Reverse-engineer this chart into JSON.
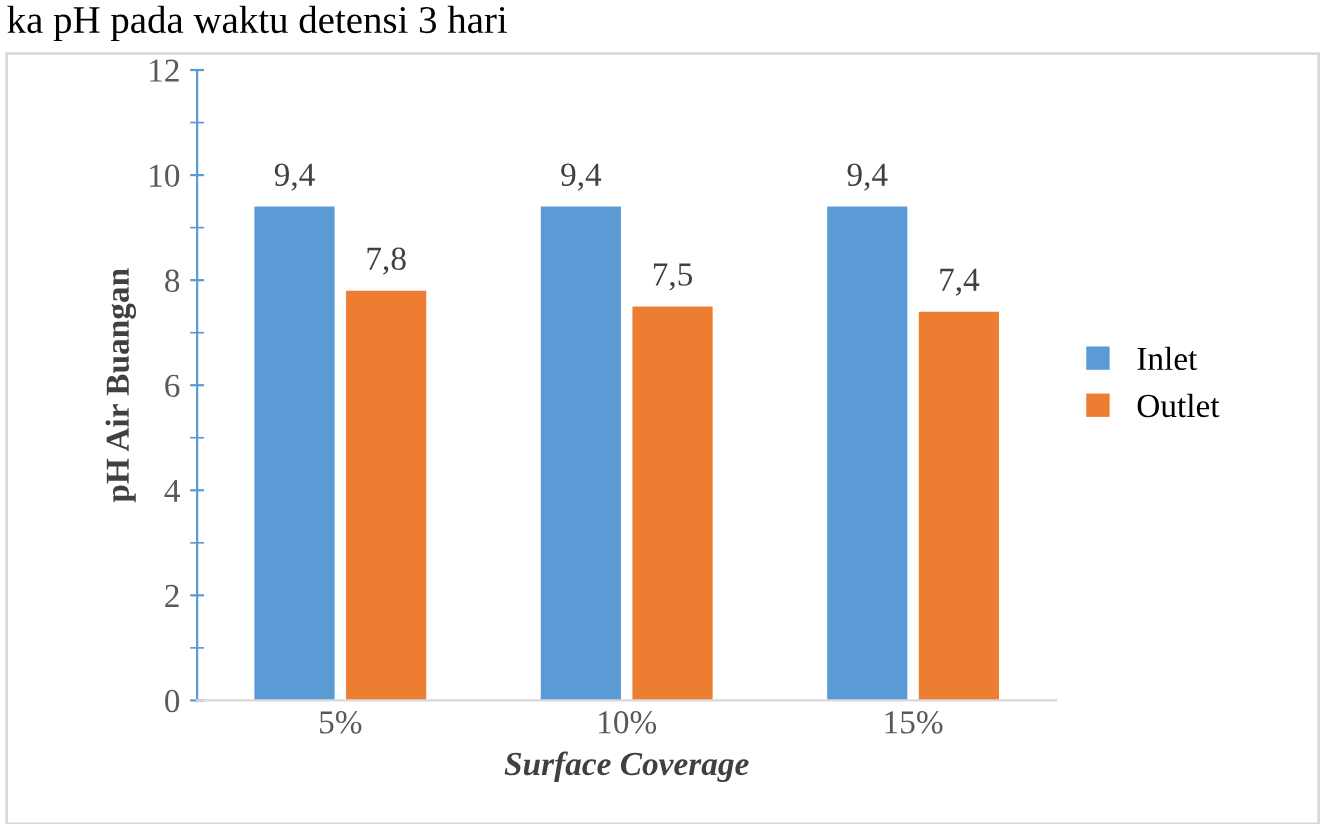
{
  "chart_data": {
    "type": "bar",
    "title": "ka pH pada waktu detensi 3 hari",
    "xlabel": "Surface Coverage",
    "ylabel": "pH Air Buangan",
    "categories": [
      "5%",
      "10%",
      "15%"
    ],
    "series": [
      {
        "name": "Inlet",
        "color": "#5b9bd5",
        "values": [
          9.4,
          9.4,
          9.4
        ],
        "value_labels": [
          "9,4",
          "9,4",
          "9,4"
        ]
      },
      {
        "name": "Outlet",
        "color": "#ed7d31",
        "values": [
          7.8,
          7.5,
          7.4
        ],
        "value_labels": [
          "7,8",
          "7,5",
          "7,4"
        ]
      }
    ],
    "ylim": [
      0,
      12
    ],
    "yticks": [
      0,
      2,
      4,
      6,
      8,
      10,
      12
    ],
    "grid": false,
    "legend": "right"
  }
}
